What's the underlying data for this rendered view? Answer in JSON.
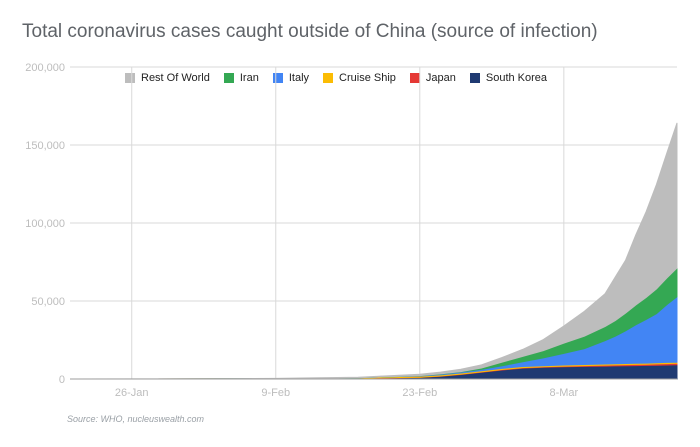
{
  "chart_data": {
    "type": "area",
    "stacked": true,
    "title": "Total coronavirus cases caught outside of China (source of infection)",
    "source_note": "Source: WHO, nucleuswealth.com",
    "xlabel": "",
    "ylabel": "",
    "x_tick_labels": [
      "26-Jan",
      "9-Feb",
      "23-Feb",
      "8-Mar"
    ],
    "x_tick_day_index": [
      6,
      20,
      34,
      48
    ],
    "y_tick_labels": [
      "0",
      "50,000",
      "100,000",
      "150,000",
      "200,000"
    ],
    "ylim": [
      0,
      200000
    ],
    "grid": true,
    "legend_position": "top",
    "x_start_day": 0,
    "x_end_day": 59,
    "x": [
      0,
      8,
      14,
      20,
      24,
      28,
      30,
      32,
      34,
      36,
      38,
      40,
      42,
      44,
      46,
      48,
      50,
      52,
      53,
      54,
      55,
      56,
      57,
      58,
      59
    ],
    "series": [
      {
        "name": "South Korea",
        "color": "#1f3a72",
        "values": [
          0,
          10,
          20,
          30,
          50,
          200,
          600,
          800,
          1000,
          1700,
          2900,
          4300,
          5800,
          7000,
          7500,
          7900,
          8100,
          8300,
          8400,
          8500,
          8600,
          8700,
          8800,
          9000,
          9100
        ]
      },
      {
        "name": "Japan",
        "color": "#e53935",
        "values": [
          0,
          20,
          30,
          60,
          100,
          120,
          140,
          160,
          180,
          200,
          220,
          250,
          280,
          300,
          330,
          400,
          500,
          600,
          650,
          700,
          750,
          800,
          850,
          900,
          950
        ]
      },
      {
        "name": "Cruise Ship",
        "color": "#fbbc04",
        "values": [
          0,
          0,
          0,
          70,
          350,
          450,
          540,
          620,
          680,
          700,
          705,
          705,
          706,
          706,
          706,
          706,
          706,
          710,
          712,
          712,
          712,
          712,
          712,
          712,
          712
        ]
      },
      {
        "name": "Italy",
        "color": "#4285f4",
        "values": [
          0,
          2,
          3,
          3,
          3,
          3,
          4,
          50,
          200,
          450,
          650,
          900,
          1700,
          3000,
          5000,
          7400,
          10100,
          15000,
          17700,
          21000,
          24700,
          28000,
          31500,
          37000,
          42000
        ]
      },
      {
        "name": "Iran",
        "color": "#34a853",
        "values": [
          0,
          0,
          0,
          0,
          0,
          0,
          0,
          20,
          100,
          200,
          300,
          900,
          2300,
          3500,
          4700,
          6600,
          8000,
          9000,
          10000,
          11300,
          12700,
          14000,
          15800,
          17000,
          18400
        ]
      },
      {
        "name": "Rest Of World",
        "color": "#bdbdbd",
        "values": [
          0,
          5,
          60,
          200,
          300,
          400,
          500,
          700,
          900,
          1200,
          1500,
          2000,
          3000,
          4500,
          7000,
          11000,
          16000,
          21000,
          28000,
          34000,
          45000,
          55000,
          67000,
          80000,
          93000
        ]
      }
    ]
  }
}
